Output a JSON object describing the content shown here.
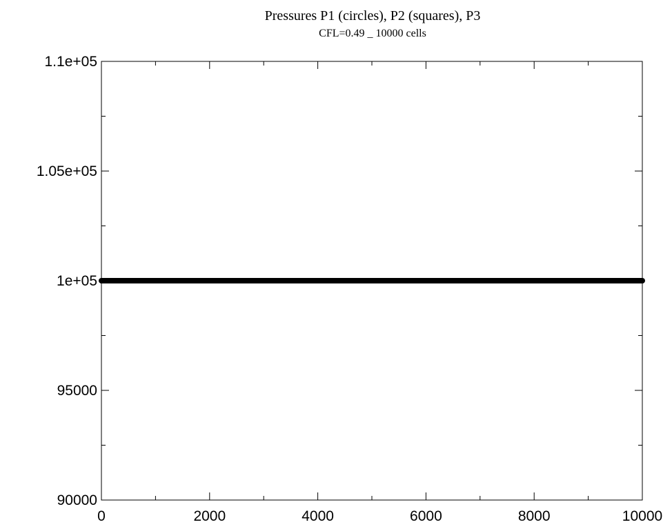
{
  "chart_data": {
    "type": "scatter",
    "title": "Pressures P1 (circles), P2 (squares), P3",
    "subtitle": "CFL=0.49 _  10000 cells",
    "xlabel": "",
    "ylabel": "",
    "xlim": [
      0,
      10000
    ],
    "ylim": [
      90000,
      110000
    ],
    "x_ticks": [
      0,
      2000,
      4000,
      6000,
      8000,
      10000
    ],
    "x_tick_labels": [
      "0",
      "2000",
      "4000",
      "6000",
      "8000",
      "10000"
    ],
    "x_minor_step": 1000,
    "y_ticks": [
      90000,
      95000,
      100000,
      105000,
      110000
    ],
    "y_tick_labels": [
      "90000",
      "95000",
      "1e+05",
      "1.05e+05",
      "1.1e+05"
    ],
    "y_minor_step": 2500,
    "grid": false,
    "legend": "none",
    "series": [
      {
        "name": "P1",
        "marker": "circle",
        "x_range": [
          0,
          10000
        ],
        "n_points": 10000,
        "value": 100000
      },
      {
        "name": "P2",
        "marker": "square",
        "x_range": [
          0,
          10000
        ],
        "n_points": 10000,
        "value": 100000
      },
      {
        "name": "P3",
        "marker": "line",
        "x_range": [
          0,
          10000
        ],
        "n_points": 10000,
        "value": 100000
      }
    ],
    "colors": {
      "data": "#000000",
      "axes": "#000000"
    }
  }
}
